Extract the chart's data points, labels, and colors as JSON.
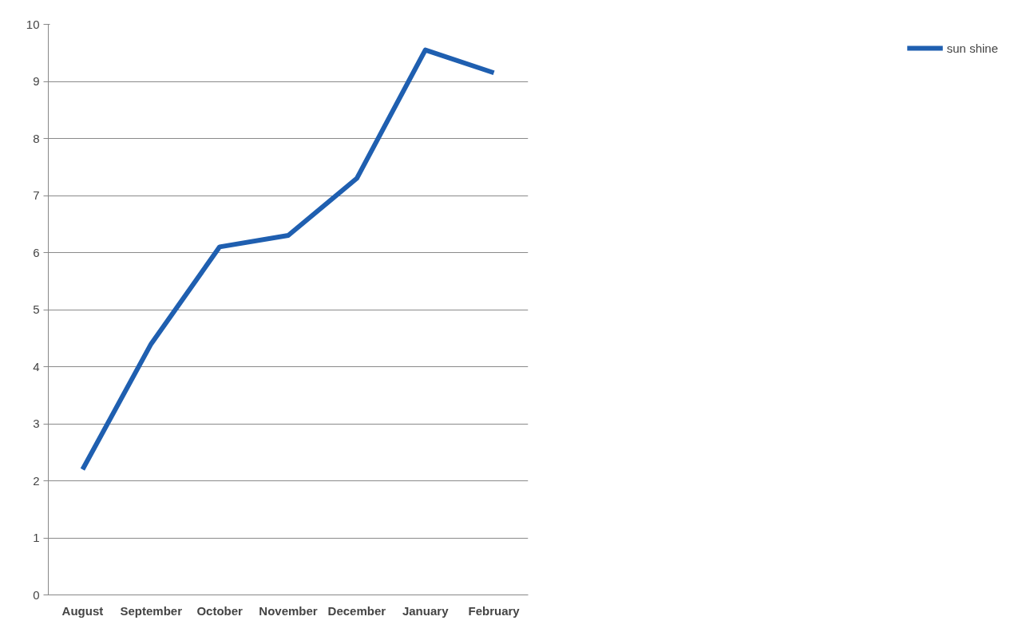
{
  "chart_data": {
    "type": "line",
    "categories": [
      "August",
      "September",
      "October",
      "November",
      "December",
      "January",
      "February"
    ],
    "series": [
      {
        "name": "sun shine",
        "color": "#1f5fb0",
        "values": [
          2.2,
          4.4,
          6.1,
          6.3,
          7.3,
          9.55,
          9.15
        ]
      }
    ],
    "ylim": [
      0,
      10
    ],
    "yticks": [
      0,
      1,
      2,
      3,
      4,
      5,
      6,
      7,
      8,
      9,
      10
    ],
    "grid": "y",
    "legend": "right",
    "marker": "none",
    "line_style": "solid"
  }
}
